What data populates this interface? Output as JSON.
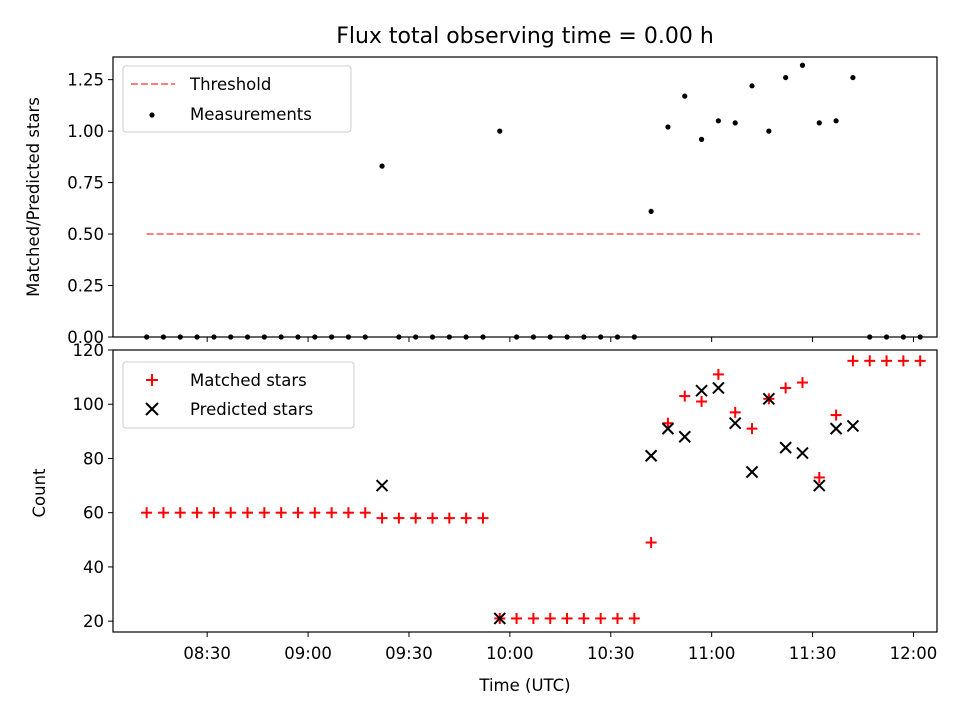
{
  "chart_data": [
    {
      "type": "scatter",
      "title": "Flux total observing time = 0.00 h",
      "xlabel": "",
      "ylabel": "Matched/Predicted stars",
      "ylim": [
        0,
        1.36
      ],
      "xlim": [
        "08:02",
        "12:07"
      ],
      "yticks": [
        "0.00",
        "0.25",
        "0.50",
        "0.75",
        "1.00",
        "1.25"
      ],
      "yticks_values": [
        0,
        0.25,
        0.5,
        0.75,
        1.0,
        1.25
      ],
      "legend": {
        "placement": "top-left",
        "entries": [
          "Threshold",
          "Measurements"
        ]
      },
      "series": [
        {
          "name": "Threshold",
          "style": "dashed-line",
          "color": "#ff7f7f",
          "x": [
            "08:12",
            "12:02"
          ],
          "y": [
            0.5,
            0.5
          ]
        },
        {
          "name": "Measurements",
          "style": "dot",
          "color": "#000000",
          "x": [
            "08:12",
            "08:17",
            "08:22",
            "08:27",
            "08:32",
            "08:37",
            "08:42",
            "08:47",
            "08:52",
            "08:57",
            "09:02",
            "09:07",
            "09:12",
            "09:17",
            "09:22",
            "09:27",
            "09:32",
            "09:37",
            "09:42",
            "09:47",
            "09:52",
            "09:57",
            "10:02",
            "10:07",
            "10:12",
            "10:17",
            "10:22",
            "10:27",
            "10:32",
            "10:37",
            "10:42",
            "10:47",
            "10:52",
            "10:57",
            "11:02",
            "11:07",
            "11:12",
            "11:17",
            "11:22",
            "11:27",
            "11:32",
            "11:37",
            "11:42",
            "11:47",
            "11:52",
            "11:57",
            "12:02"
          ],
          "y": [
            0,
            0,
            0,
            0,
            0,
            0,
            0,
            0,
            0,
            0,
            0,
            0,
            0,
            0,
            0.83,
            0,
            0,
            0,
            0,
            0,
            0,
            1.0,
            0,
            0,
            0,
            0,
            0,
            0,
            0,
            0,
            0.61,
            1.02,
            1.17,
            0.96,
            1.05,
            1.04,
            1.22,
            1.0,
            1.26,
            1.32,
            1.04,
            1.05,
            1.26,
            0,
            0,
            0,
            0
          ]
        }
      ]
    },
    {
      "type": "scatter",
      "title": "",
      "xlabel": "Time (UTC)",
      "ylabel": "Count",
      "ylim": [
        16,
        120
      ],
      "xlim": [
        "08:02",
        "12:07"
      ],
      "xticks": [
        "08:30",
        "09:00",
        "09:30",
        "10:00",
        "10:30",
        "11:00",
        "11:30",
        "12:00"
      ],
      "yticks": [
        "20",
        "40",
        "60",
        "80",
        "100",
        "120"
      ],
      "yticks_values": [
        20,
        40,
        60,
        80,
        100,
        120
      ],
      "legend": {
        "placement": "top-left",
        "entries": [
          "Matched stars",
          "Predicted stars"
        ]
      },
      "series": [
        {
          "name": "Matched stars",
          "style": "plus",
          "color": "#ff0000",
          "x": [
            "08:12",
            "08:17",
            "08:22",
            "08:27",
            "08:32",
            "08:37",
            "08:42",
            "08:47",
            "08:52",
            "08:57",
            "09:02",
            "09:07",
            "09:12",
            "09:17",
            "09:22",
            "09:27",
            "09:32",
            "09:37",
            "09:42",
            "09:47",
            "09:52",
            "09:57",
            "10:02",
            "10:07",
            "10:12",
            "10:17",
            "10:22",
            "10:27",
            "10:32",
            "10:37",
            "10:42",
            "10:47",
            "10:52",
            "10:57",
            "11:02",
            "11:07",
            "11:12",
            "11:17",
            "11:22",
            "11:27",
            "11:32",
            "11:37",
            "11:42",
            "11:47",
            "11:52",
            "11:57",
            "12:02"
          ],
          "y": [
            60,
            60,
            60,
            60,
            60,
            60,
            60,
            60,
            60,
            60,
            60,
            60,
            60,
            60,
            58,
            58,
            58,
            58,
            58,
            58,
            58,
            21,
            21,
            21,
            21,
            21,
            21,
            21,
            21,
            21,
            49,
            93,
            103,
            101,
            111,
            97,
            91,
            102,
            106,
            108,
            73,
            96,
            116,
            116,
            116,
            116,
            116
          ]
        },
        {
          "name": "Predicted stars",
          "style": "x",
          "color": "#000000",
          "x": [
            "09:22",
            "09:57",
            "10:42",
            "10:47",
            "10:52",
            "10:57",
            "11:02",
            "11:07",
            "11:12",
            "11:17",
            "11:22",
            "11:27",
            "11:32",
            "11:37",
            "11:42"
          ],
          "y": [
            70,
            21,
            81,
            91,
            88,
            105,
            106,
            93,
            75,
            102,
            84,
            82,
            70,
            91,
            92
          ]
        }
      ]
    }
  ]
}
